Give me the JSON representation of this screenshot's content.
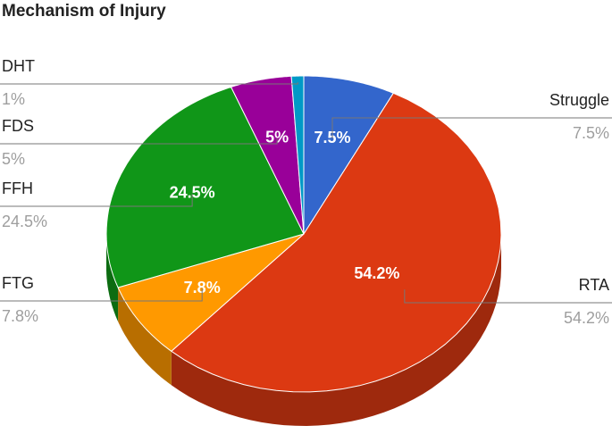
{
  "chart_data": {
    "type": "pie",
    "title": "Mechanism of Injury",
    "is_3d": true,
    "categories": [
      "Struggle",
      "RTA",
      "FTG",
      "FFH",
      "FDS",
      "DHT"
    ],
    "values": [
      7.5,
      54.2,
      7.8,
      24.5,
      5,
      1
    ],
    "value_labels": [
      "7.5%",
      "54.2%",
      "7.8%",
      "24.5%",
      "5%",
      "1%"
    ],
    "colors": [
      "#3366cc",
      "#dc3912",
      "#ff9900",
      "#109618",
      "#990099",
      "#0099c6"
    ]
  }
}
